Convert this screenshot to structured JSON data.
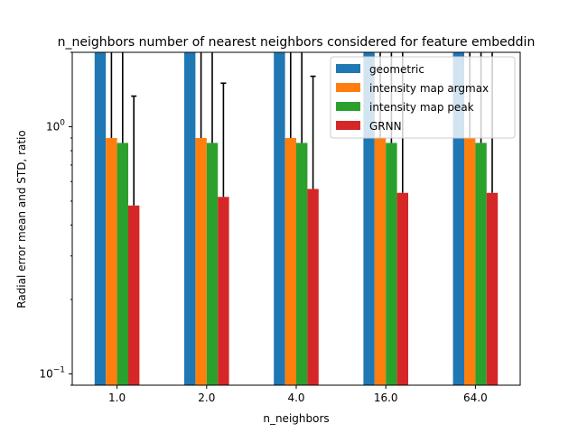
{
  "chart_data": {
    "type": "bar",
    "title": "n_neighbors number of nearest neighbors considered for feature embeddin",
    "xlabel": "n_neighbors",
    "ylabel": "Radial error mean and STD, ratio",
    "yscale": "log",
    "ylim": [
      0.09,
      2.0
    ],
    "yticks": [
      {
        "value": 0.1,
        "base": "10",
        "exp": "−1"
      },
      {
        "value": 1.0,
        "base": "10",
        "exp": "0"
      }
    ],
    "categories": [
      "1.0",
      "2.0",
      "4.0",
      "16.0",
      "64.0"
    ],
    "series": [
      {
        "name": "geometric",
        "color": "#1f77b4",
        "values": [
          2.6,
          2.6,
          2.6,
          2.6,
          2.6
        ],
        "err_hi": [
          3.8,
          3.8,
          3.8,
          3.8,
          3.8
        ]
      },
      {
        "name": "intensity map argmax",
        "color": "#ff7f0e",
        "values": [
          0.9,
          0.9,
          0.9,
          0.9,
          0.9
        ],
        "err_hi": [
          3.0,
          3.0,
          3.0,
          3.0,
          3.0
        ]
      },
      {
        "name": "intensity map peak",
        "color": "#2ca02c",
        "values": [
          0.86,
          0.86,
          0.86,
          0.86,
          0.86
        ],
        "err_hi": [
          3.0,
          3.0,
          3.0,
          3.0,
          3.0
        ]
      },
      {
        "name": "GRNN",
        "color": "#d62728",
        "values": [
          0.48,
          0.52,
          0.56,
          0.54,
          0.54
        ],
        "err_hi": [
          1.33,
          1.5,
          1.6,
          2.5,
          2.5
        ]
      }
    ],
    "legend": "top-right",
    "grid": false
  }
}
